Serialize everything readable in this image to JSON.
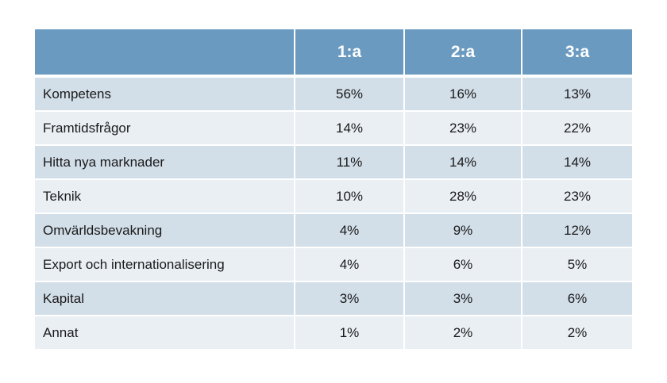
{
  "chart_data": {
    "type": "table",
    "columns": [
      "",
      "1:a",
      "2:a",
      "3:a"
    ],
    "rows": [
      {
        "label": "Kompetens",
        "values": [
          "56%",
          "16%",
          "13%"
        ]
      },
      {
        "label": "Framtidsfrågor",
        "values": [
          "14%",
          "23%",
          "22%"
        ]
      },
      {
        "label": "Hitta nya marknader",
        "values": [
          "11%",
          "14%",
          "14%"
        ]
      },
      {
        "label": "Teknik",
        "values": [
          "10%",
          "28%",
          "23%"
        ]
      },
      {
        "label": "Omvärldsbevakning",
        "values": [
          "4%",
          "9%",
          "12%"
        ]
      },
      {
        "label": "Export och internationalisering",
        "values": [
          "4%",
          "6%",
          "5%"
        ]
      },
      {
        "label": "Kapital",
        "values": [
          "3%",
          "3%",
          "6%"
        ]
      },
      {
        "label": "Annat",
        "values": [
          "1%",
          "2%",
          "2%"
        ]
      }
    ],
    "colors": {
      "header": "#6b9ac0",
      "row_dark": "#d2dee8",
      "row_light": "#eaeff4"
    }
  }
}
